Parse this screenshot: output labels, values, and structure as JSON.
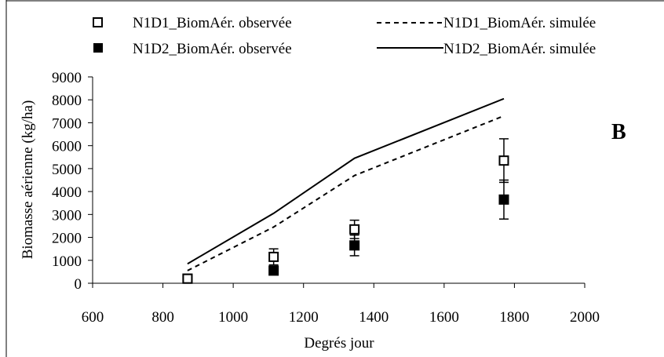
{
  "chart_data": {
    "type": "line",
    "panel_label": "B",
    "xlabel": "Degrés jour",
    "ylabel": "Biomasse aérienne (kg/ha)",
    "xlim": [
      600,
      2000
    ],
    "ylim": [
      0,
      9000
    ],
    "x_ticks": [
      600,
      800,
      1000,
      1200,
      1400,
      1600,
      1800,
      2000
    ],
    "y_ticks": [
      0,
      1000,
      2000,
      3000,
      4000,
      5000,
      6000,
      7000,
      8000,
      9000
    ],
    "legend_position": "top",
    "series": [
      {
        "name": "N1D1_BiomAér. observée",
        "kind": "observed",
        "marker": "open-square",
        "x": [
          870,
          1115,
          1345,
          1770
        ],
        "y": [
          200,
          1150,
          2350,
          5350
        ],
        "error": [
          0,
          350,
          400,
          950
        ]
      },
      {
        "name": "N1D2_BiomAér. observée",
        "kind": "observed",
        "marker": "filled-square",
        "x": [
          870,
          1115,
          1345,
          1770
        ],
        "y": [
          200,
          550,
          1650,
          3650
        ],
        "error": [
          0,
          0,
          450,
          850
        ]
      },
      {
        "name": "N1D1_BiomAér. simulée",
        "kind": "simulated",
        "line": "dashed",
        "x": [
          870,
          1115,
          1345,
          1770
        ],
        "y": [
          550,
          2450,
          4700,
          7300
        ]
      },
      {
        "name": "N1D2_BiomAér. simulée",
        "kind": "simulated",
        "line": "solid",
        "x": [
          870,
          1115,
          1345,
          1770
        ],
        "y": [
          850,
          3050,
          5450,
          8050
        ]
      }
    ]
  }
}
